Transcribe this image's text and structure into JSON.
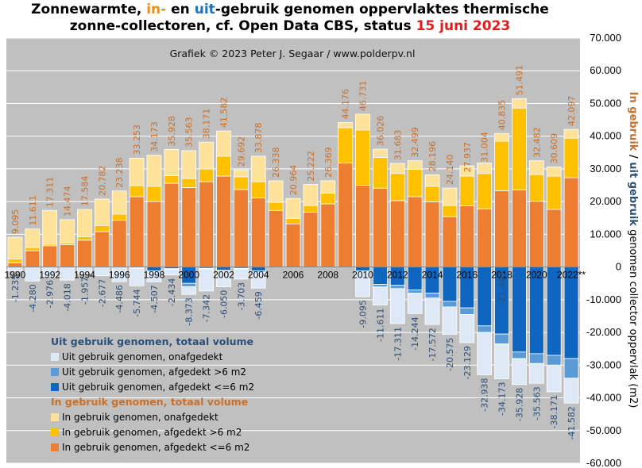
{
  "title": {
    "part1": "Zonnewarmte, ",
    "part_in": "in-",
    "part2": " en ",
    "part_out": "uit",
    "part3": "-gebruik genomen oppervlaktes thermische",
    "line2": "zonne-collectoren, cf. Open Data CBS, status ",
    "date": "15 juni 2023"
  },
  "credit": "Grafiek © 2023 Peter J. Segaar / www.polderpv.nl",
  "ylabel": {
    "in": "In gebruik",
    "sep": " / ",
    "out": "uit gebruik",
    "rest": " genomen collector oppervlak (m2)"
  },
  "colors": {
    "plot_bg": "#c0c0c0",
    "in_onafgedekt": "#ffe29a",
    "in_gt6": "#ffc000",
    "in_le6": "#ed7d31",
    "out_onafgedekt": "#dde9f6",
    "out_gt6": "#5b9bd5",
    "out_le6": "#0f66c0",
    "label_in": "#c9702a",
    "label_out": "#2b4f78"
  },
  "legend": {
    "out_header": "Uit gebruik genomen, totaal volume",
    "out_items": [
      {
        "label": "Uit gebruik genomen, onafgedekt",
        "color": "#dde9f6"
      },
      {
        "label": "Uit gebruik genomen, afgedekt >6 m2",
        "color": "#5b9bd5"
      },
      {
        "label": "Uit gebruik genomen, afgedekt <=6 m2",
        "color": "#0f66c0"
      }
    ],
    "in_header": "In gebruik genomen, totaal volume",
    "in_items": [
      {
        "label": "In gebruik genomen, onafgedekt",
        "color": "#ffe29a"
      },
      {
        "label": "In gebruik genomen, afgedekt >6 m2",
        "color": "#ffc000"
      },
      {
        "label": "In gebruik genomen, afgedekt <=6 m2",
        "color": "#ed7d31"
      }
    ]
  },
  "chart_data": {
    "type": "bar",
    "stacked": true,
    "ylim": [
      -60000,
      70000
    ],
    "yticks": [
      70000,
      60000,
      50000,
      40000,
      30000,
      20000,
      10000,
      0,
      -10000,
      -20000,
      -30000,
      -40000,
      -50000,
      -60000
    ],
    "ytick_labels": [
      "70.000",
      "60.000",
      "50.000",
      "40.000",
      "30.000",
      "20.000",
      "10.000",
      "0",
      "-10.000",
      "-20.000",
      "-30.000",
      "-40.000",
      "-50.000",
      "-60.000"
    ],
    "grid": true,
    "categories": [
      "1990",
      "1991",
      "1992",
      "1993",
      "1994",
      "1995",
      "1996",
      "1997",
      "1998",
      "1999",
      "2000",
      "2001",
      "2002",
      "2003",
      "2004",
      "2005",
      "2006",
      "2007",
      "2008",
      "2009",
      "2010",
      "2011",
      "2012",
      "2013",
      "2014",
      "2015",
      "2016",
      "2017",
      "2018",
      "2019",
      "2020",
      "2021",
      "2022**"
    ],
    "xtick_labels": [
      "1990",
      "",
      "1992",
      "",
      "1994",
      "",
      "1996",
      "",
      "1998",
      "",
      "2000",
      "",
      "2002",
      "",
      "2004",
      "",
      "2006",
      "",
      "2008",
      "",
      "2010",
      "",
      "2012",
      "",
      "2014",
      "",
      "2016",
      "",
      "2018",
      "",
      "2020",
      "",
      "2022**"
    ],
    "in_le6": [
      1300,
      5000,
      6500,
      6800,
      8200,
      10800,
      14300,
      21500,
      20000,
      25600,
      24300,
      26100,
      27800,
      23700,
      21100,
      17300,
      13200,
      16800,
      19300,
      31800,
      25000,
      24100,
      20300,
      21500,
      19900,
      15400,
      18700,
      17800,
      23300,
      23600,
      20100,
      17600,
      27300
    ],
    "in_gt6": [
      1200,
      1000,
      500,
      600,
      1100,
      1900,
      1900,
      3400,
      4700,
      2300,
      2800,
      3900,
      6100,
      3900,
      5000,
      2500,
      1600,
      2000,
      3300,
      10800,
      16900,
      9400,
      8300,
      8400,
      4800,
      3400,
      9100,
      10800,
      15200,
      25000,
      8200,
      10200,
      12100
    ],
    "in_onafgedekt": [
      6595,
      5611,
      10311,
      7074,
      8284,
      8082,
      7038,
      8353,
      9473,
      8028,
      8463,
      8171,
      7682,
      2092,
      7778,
      6538,
      6164,
      6422,
      3769,
      1576,
      4831,
      2526,
      3083,
      2599,
      3496,
      5340,
      3137,
      3204,
      2335,
      2891,
      4182,
      2809,
      2697
    ],
    "in_total": [
      9095,
      11611,
      17311,
      14474,
      17584,
      20782,
      23238,
      33253,
      34173,
      35928,
      35563,
      38171,
      41582,
      29692,
      33878,
      26338,
      20964,
      25222,
      26369,
      44176,
      46731,
      36026,
      31683,
      32499,
      28196,
      24140,
      27937,
      31004,
      40835,
      51491,
      32482,
      30609,
      42097
    ],
    "in_labels": [
      "9.095",
      "11.611",
      "17.311",
      "14.474",
      "17.584",
      "20.782",
      "23.238",
      "33.253",
      "34.173",
      "35.928",
      "35.563",
      "38.171",
      "41.582",
      "29.692",
      "33.878",
      "26.338",
      "20.964",
      "25.222",
      "26.369",
      "44.176",
      "46.731",
      "36.026",
      "31.683",
      "32.499",
      "28.196",
      "24.140",
      "27.937",
      "31.004",
      "40.835",
      "51.491",
      "32.482",
      "30.609",
      "42.097"
    ],
    "out_le6": [
      0,
      0,
      0,
      0,
      0,
      0,
      0,
      200,
      1200,
      500,
      5000,
      400,
      1000,
      400,
      1200,
      0,
      0,
      0,
      0,
      0,
      1200,
      5300,
      5600,
      7000,
      8000,
      10500,
      12500,
      18000,
      20500,
      26000,
      26500,
      27000,
      28000
    ],
    "out_gt6": [
      0,
      0,
      0,
      0,
      0,
      0,
      0,
      200,
      300,
      200,
      1000,
      200,
      300,
      200,
      400,
      0,
      0,
      0,
      0,
      0,
      300,
      800,
      1000,
      1000,
      1500,
      1700,
      2000,
      2000,
      3000,
      2000,
      3000,
      3000,
      6000
    ],
    "out_onafgedekt": [
      1235,
      4280,
      2976,
      4018,
      1957,
      2677,
      4486,
      5344,
      3007,
      1734,
      2373,
      6742,
      4750,
      3103,
      4859,
      0,
      0,
      0,
      0,
      0,
      7595,
      5511,
      10711,
      6244,
      8072,
      8375,
      8629,
      12938,
      10673,
      7928,
      6063,
      8171,
      7582
    ],
    "out_total": [
      -1235,
      -4280,
      -2976,
      -4018,
      -1957,
      -2677,
      -4486,
      -5744,
      -4507,
      -2434,
      -8373,
      -7342,
      -6050,
      -3703,
      -6459,
      0,
      0,
      0,
      0,
      0,
      -9095,
      -11611,
      -17311,
      -14244,
      -17572,
      -20575,
      -23129,
      -32938,
      -34173,
      -35928,
      -35563,
      -38171,
      -41582
    ],
    "out_labels": [
      "-1.235",
      "-4.280",
      "-2.976",
      "-4.018",
      "-1.957",
      "-2.677",
      "-4.486",
      "-5.744",
      "-4.507",
      "-2.434",
      "-8.373",
      "-7.342",
      "-6.050",
      "-3.703",
      "-6.459",
      "",
      "",
      "",
      "",
      "",
      "-9.095",
      "-11.611",
      "-17.311",
      "-14.244",
      "-17.572",
      "-20.575",
      "-23.129",
      "-32.938",
      "-34.173",
      "-35.928",
      "-35.563",
      "-38.171",
      "-41.582"
    ],
    "overlay_labels": [
      {
        "index": 28,
        "text": "-21.443"
      }
    ]
  }
}
